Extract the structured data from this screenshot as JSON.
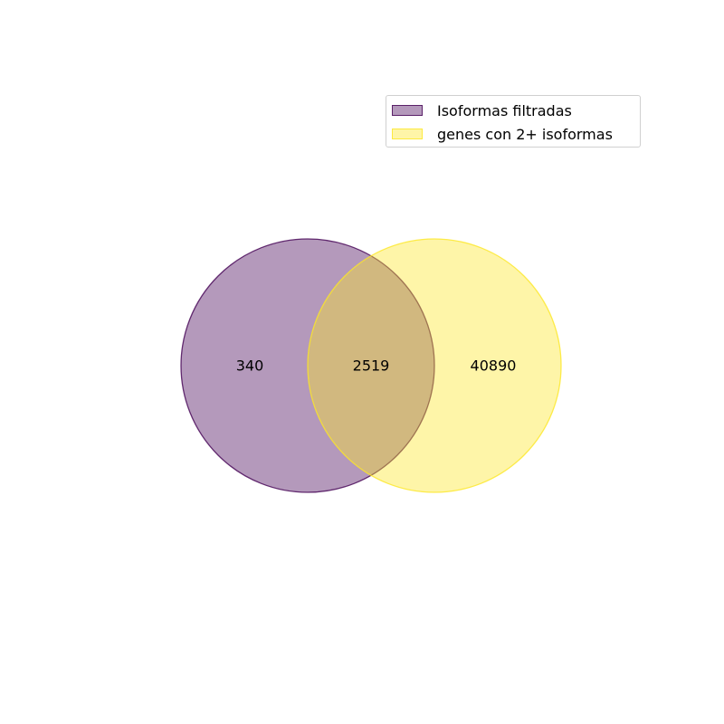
{
  "chart_data": {
    "type": "venn",
    "sets": [
      {
        "name": "Isoformas filtradas",
        "color": "#440154",
        "fill_opacity": 0.4
      },
      {
        "name": "genes con 2+ isoformas",
        "color": "#fde725",
        "fill_opacity": 0.4
      }
    ],
    "regions": {
      "only_a": 340,
      "intersection": 2519,
      "only_b": 40890
    },
    "legend_position": "top-right"
  }
}
